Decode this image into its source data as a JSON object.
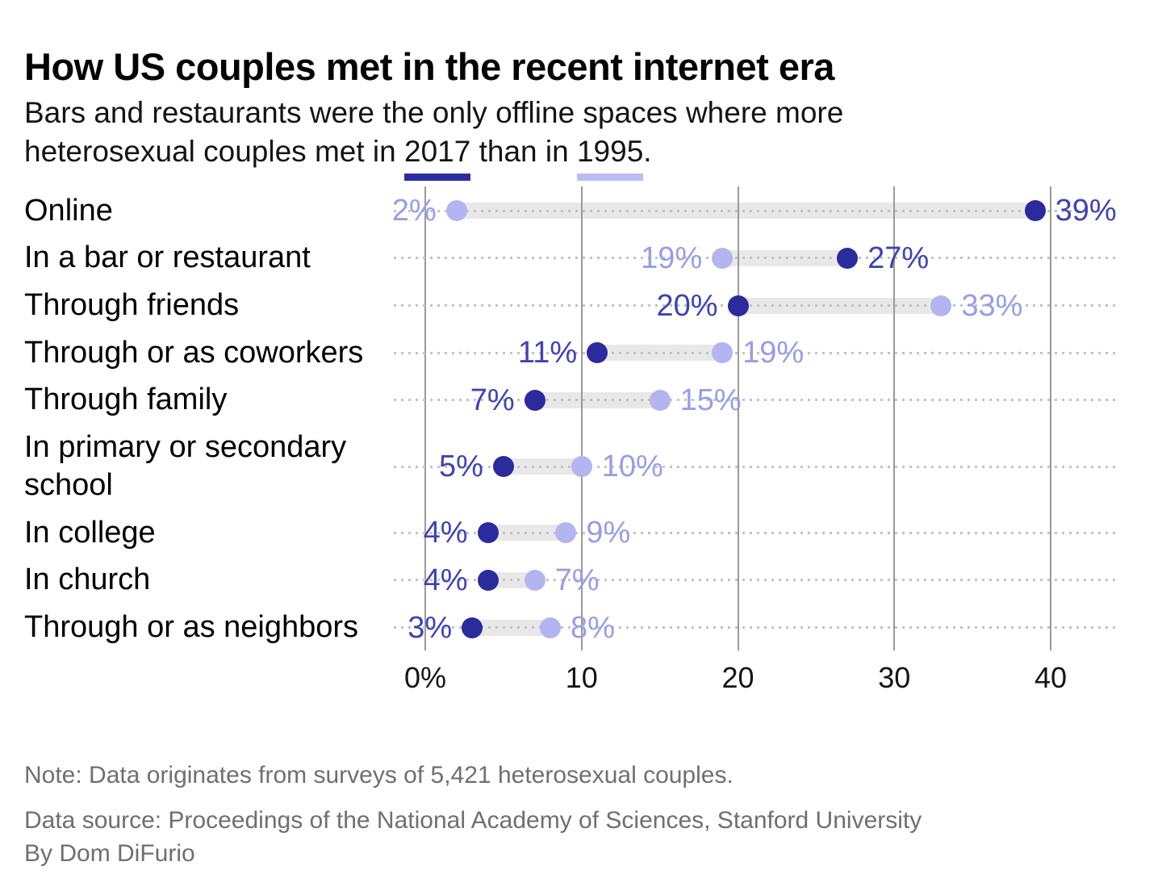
{
  "header": {
    "title": "How US couples met in the recent internet era",
    "subtitle_line1": "Bars and restaurants were the only offline spaces where more",
    "subtitle_line2": {
      "pre": "heterosexual couples met in ",
      "year_2017": "2017",
      "mid": " than in ",
      "year_1995": "1995",
      "post": "."
    }
  },
  "chart_data": {
    "type": "dumbbell",
    "unit": "%",
    "title": "How US couples met in the recent internet era",
    "series": [
      {
        "name": "2017",
        "dot_color": "#2b2b9d",
        "label_color": "#4343ac",
        "underline_color": "#2d2da3"
      },
      {
        "name": "1995",
        "dot_color": "#b3b5f1",
        "label_color": "#9a9de3",
        "underline_color": "#b9bcf3"
      }
    ],
    "rows": [
      {
        "category": "Online",
        "pct_2017": 39,
        "pct_1995": 2
      },
      {
        "category": "In a bar or restaurant",
        "pct_2017": 27,
        "pct_1995": 19
      },
      {
        "category": "Through friends",
        "pct_2017": 20,
        "pct_1995": 33
      },
      {
        "category": "Through or as coworkers",
        "pct_2017": 11,
        "pct_1995": 19
      },
      {
        "category": "Through family",
        "pct_2017": 7,
        "pct_1995": 15
      },
      {
        "category": "In primary or secondary school",
        "pct_2017": 5,
        "pct_1995": 10
      },
      {
        "category": "In college",
        "pct_2017": 4,
        "pct_1995": 9
      },
      {
        "category": "In church",
        "pct_2017": 4,
        "pct_1995": 7
      },
      {
        "category": "Through or as neighbors",
        "pct_2017": 3,
        "pct_1995": 8
      }
    ],
    "x_axis": {
      "ticks": [
        {
          "value": 0,
          "label": "0%"
        },
        {
          "value": 10,
          "label": "10"
        },
        {
          "value": 20,
          "label": "20"
        },
        {
          "value": 30,
          "label": "30"
        },
        {
          "value": 40,
          "label": "40"
        }
      ],
      "range": [
        0,
        44
      ],
      "grid": true
    },
    "colors": {
      "gridline": "#9a9a9a",
      "leader_dots": "#c3c3c3",
      "connector_band": "#e8e8e8"
    }
  },
  "footer": {
    "note": "Note: Data originates from surveys of 5,421 heterosexual couples.",
    "source": "Data source: Proceedings of the National Academy of Sciences, Stanford University",
    "byline": "By Dom DiFurio"
  }
}
